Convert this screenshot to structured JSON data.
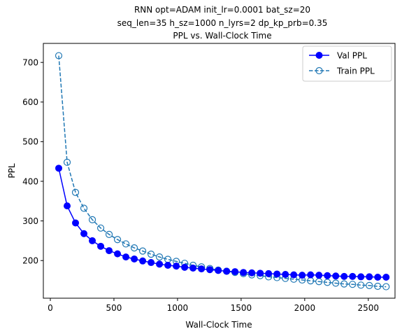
{
  "chart_data": {
    "type": "line",
    "title_lines": [
      "RNN opt=ADAM init_lr=0.0001 bat_sz=20",
      "seq_len=35 h_sz=1000 n_lyrs=2 dp_kp_prb=0.35",
      "PPL vs. Wall-Clock Time"
    ],
    "xlabel": "Wall-Clock Time",
    "ylabel": "PPL",
    "xlim": [
      -55,
      2710
    ],
    "ylim": [
      105,
      748
    ],
    "xticks": [
      0,
      500,
      1000,
      1500,
      2000,
      2500
    ],
    "yticks": [
      200,
      300,
      400,
      500,
      600,
      700
    ],
    "legend_position": "top-right",
    "series": [
      {
        "name": "Val PPL",
        "color": "#0000ff",
        "line_style": "solid",
        "marker": "filled-circle",
        "x": [
          66,
          132,
          198,
          264,
          330,
          396,
          462,
          528,
          594,
          660,
          726,
          792,
          858,
          924,
          990,
          1056,
          1122,
          1188,
          1254,
          1320,
          1386,
          1452,
          1518,
          1584,
          1650,
          1716,
          1782,
          1848,
          1914,
          1980,
          2046,
          2112,
          2178,
          2244,
          2310,
          2376,
          2442,
          2508,
          2574,
          2640
        ],
        "values": [
          433,
          338,
          295,
          268,
          250,
          236,
          225,
          217,
          209,
          204,
          199,
          195,
          191,
          188,
          186,
          183,
          181,
          179,
          177,
          175,
          173,
          172,
          170,
          169,
          168,
          167,
          166,
          165,
          164,
          163,
          164,
          163,
          162,
          161,
          160,
          160,
          159,
          159,
          158,
          158
        ]
      },
      {
        "name": "Train PPL",
        "color": "#1f77b4",
        "line_style": "dashed",
        "marker": "open-circle",
        "x": [
          66,
          132,
          198,
          264,
          330,
          396,
          462,
          528,
          594,
          660,
          726,
          792,
          858,
          924,
          990,
          1056,
          1122,
          1188,
          1254,
          1320,
          1386,
          1452,
          1518,
          1584,
          1650,
          1716,
          1782,
          1848,
          1914,
          1980,
          2046,
          2112,
          2178,
          2244,
          2310,
          2376,
          2442,
          2508,
          2574,
          2640
        ],
        "values": [
          717,
          448,
          372,
          332,
          303,
          282,
          266,
          253,
          242,
          232,
          224,
          216,
          209,
          203,
          198,
          193,
          188,
          184,
          180,
          176,
          173,
          170,
          167,
          164,
          162,
          159,
          157,
          155,
          153,
          151,
          149,
          147,
          145,
          143,
          141,
          140,
          138,
          137,
          135,
          134
        ]
      }
    ]
  }
}
